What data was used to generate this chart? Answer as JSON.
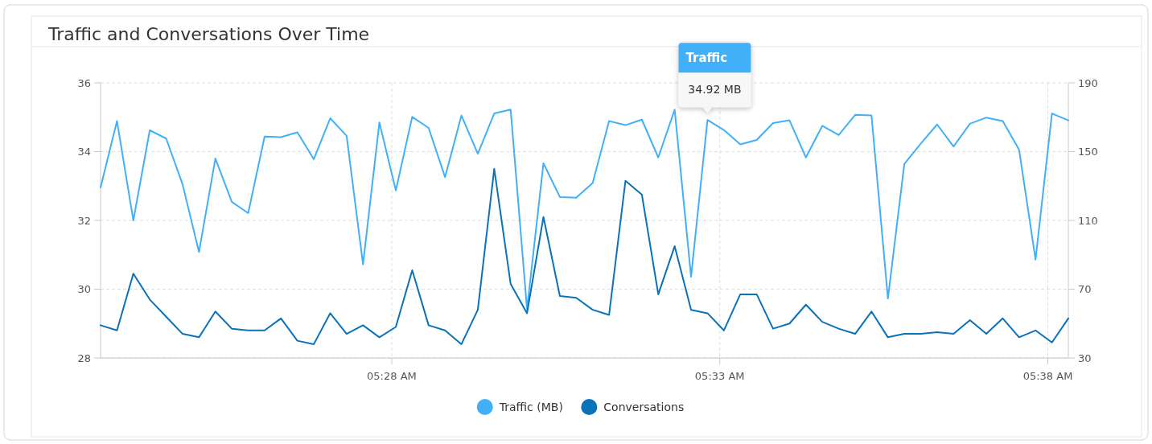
{
  "chart_data": {
    "type": "line",
    "title": "Traffic and Conversations Over Time",
    "x": [
      5.39271,
      5.39688,
      5.40104,
      5.40521,
      5.40938,
      5.41354,
      5.41771,
      5.42188,
      5.42604,
      5.43021,
      5.43438,
      5.43854,
      5.44271,
      5.44688,
      5.45104,
      5.45521,
      5.45938,
      5.46354,
      5.46771,
      5.47188,
      5.47604,
      5.48021,
      5.48438,
      5.48854,
      5.49271,
      5.49688,
      5.50104,
      5.50521,
      5.50938,
      5.51354,
      5.51771,
      5.52188,
      5.52604,
      5.53021,
      5.53438,
      5.53854,
      5.54271,
      5.54688,
      5.55104,
      5.55521,
      5.55938,
      5.56354,
      5.56771,
      5.57188,
      5.57604,
      5.58021,
      5.58438,
      5.58854,
      5.59271,
      5.59688,
      5.60104,
      5.60521,
      5.60938,
      5.61354,
      5.61771,
      5.62188,
      5.62604,
      5.63021,
      5.63438,
      5.63854
    ],
    "series": [
      {
        "name": "Traffic (MB)",
        "color": "#41b0f8",
        "values": [
          32.96,
          34.89,
          32.0,
          34.62,
          34.38,
          33.05,
          31.08,
          33.8,
          32.54,
          32.21,
          34.44,
          34.42,
          34.56,
          33.78,
          34.97,
          34.46,
          30.72,
          34.85,
          32.87,
          35.01,
          34.69,
          33.26,
          35.05,
          33.94,
          35.11,
          35.22,
          29.42,
          33.66,
          32.68,
          32.66,
          33.09,
          34.89,
          34.77,
          34.93,
          33.83,
          35.22,
          30.36,
          34.92,
          34.63,
          34.21,
          34.34,
          34.83,
          34.91,
          33.83,
          34.75,
          34.48,
          35.07,
          35.05,
          29.73,
          33.64,
          34.23,
          34.79,
          34.15,
          34.81,
          34.99,
          34.89,
          34.05,
          30.86,
          35.11,
          34.91
        ]
      },
      {
        "name": "Conversations",
        "color": "#0a72b8",
        "axis": "y2",
        "values": [
          49,
          46,
          79,
          64,
          54,
          44,
          42,
          57,
          47,
          46,
          46,
          53,
          40,
          38,
          56,
          44,
          49,
          42,
          48,
          81,
          49,
          46,
          38,
          58,
          140,
          73,
          56,
          112,
          66,
          65,
          58,
          55,
          133,
          125,
          67,
          95,
          58,
          56,
          46,
          67,
          67,
          47,
          50,
          61,
          51,
          47,
          44,
          57,
          42,
          44,
          44,
          45,
          44,
          52,
          44,
          53,
          42,
          46,
          39,
          53
        ]
      }
    ],
    "xlim": [
      5.39271,
      5.63854
    ],
    "xticks": [
      {
        "value": 5.46667,
        "label": "05:28 AM"
      },
      {
        "value": 5.55,
        "label": "05:33 AM"
      },
      {
        "value": 5.63333,
        "label": "05:38 AM"
      }
    ],
    "ylim": [
      28,
      36
    ],
    "yticks": [
      28,
      30,
      32,
      34,
      36
    ],
    "y2lim": [
      30,
      190
    ],
    "y2ticks": [
      30,
      70,
      110,
      150,
      190
    ],
    "grid": true,
    "legend": "bottom",
    "annotations": [
      "Traffic",
      {
        "text": "34.92 MB",
        "x": 5.54688,
        "y": 34.92
      }
    ]
  }
}
